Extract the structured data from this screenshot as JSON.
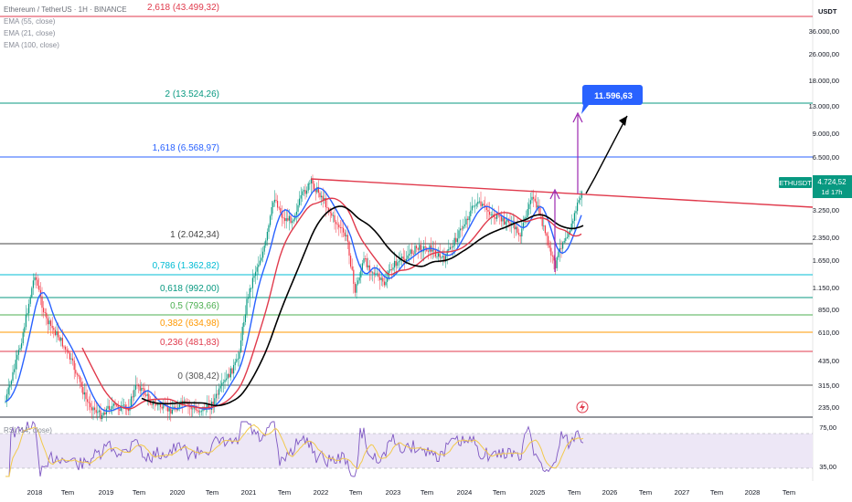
{
  "header": {
    "symbol_title": "Ethereum / TetherUS · 1H · BINANCE",
    "indicators": [
      "EMA (55, close)",
      "EMA (21, close)",
      "EMA (100, close)"
    ]
  },
  "currency": "USDT",
  "price_axis": {
    "labels": [
      "36.000,00",
      "26.000,00",
      "18.000,00",
      "13.000,00",
      "9.000,00",
      "6.500,00",
      "3.250,00",
      "2.350,00",
      "1.650,00",
      "1.150,00",
      "850,00",
      "610,00",
      "435,00",
      "315,00",
      "235,00"
    ]
  },
  "rsi": {
    "label": "RSI (14, close)",
    "labels": [
      "75,00",
      "35,00"
    ]
  },
  "time_axis": [
    "2018",
    "Tem",
    "2019",
    "Tem",
    "2020",
    "Tem",
    "2021",
    "Tem",
    "2022",
    "Tem",
    "2023",
    "Tem",
    "2024",
    "Tem",
    "2025",
    "Tem",
    "2026",
    "Tem",
    "2027",
    "Tem",
    "2028",
    "Tem"
  ],
  "fib_levels": [
    {
      "label": "2,618 (43.499,32)",
      "color": "#e03a4c"
    },
    {
      "label": "2 (13.524,26)",
      "color": "#089981"
    },
    {
      "label": "1,618 (6.568,97)",
      "color": "#2962ff"
    },
    {
      "label": "1 (2.042,34)",
      "color": "#444444"
    },
    {
      "label": "0,786 (1.362,82)",
      "color": "#00bcd4"
    },
    {
      "label": "0,618 (992,00)",
      "color": "#089981"
    },
    {
      "label": "0,5 (793,66)",
      "color": "#4caf50"
    },
    {
      "label": "0,382 (634,98)",
      "color": "#ff9800"
    },
    {
      "label": "0,236 (481,83)",
      "color": "#e03a4c"
    },
    {
      "label": "0 (308,42)",
      "color": "#555555"
    }
  ],
  "target_label": "11.596,63",
  "current_price": {
    "symbol": "ETHUSDT",
    "price": "4.724,52",
    "countdown": "1d 17h"
  },
  "colors": {
    "up": "#089981",
    "down": "#f23645",
    "ema21": "#2962ff",
    "ema55": "#e03a4c",
    "ema100": "#000000",
    "trendline": "#e03a4c",
    "arrow": "#9c27b0",
    "target_bg": "#2962ff",
    "rsi_line": "#7e57c2",
    "rsi_ma": "#f2c94c",
    "rsi_band": "#ede7f6"
  }
}
